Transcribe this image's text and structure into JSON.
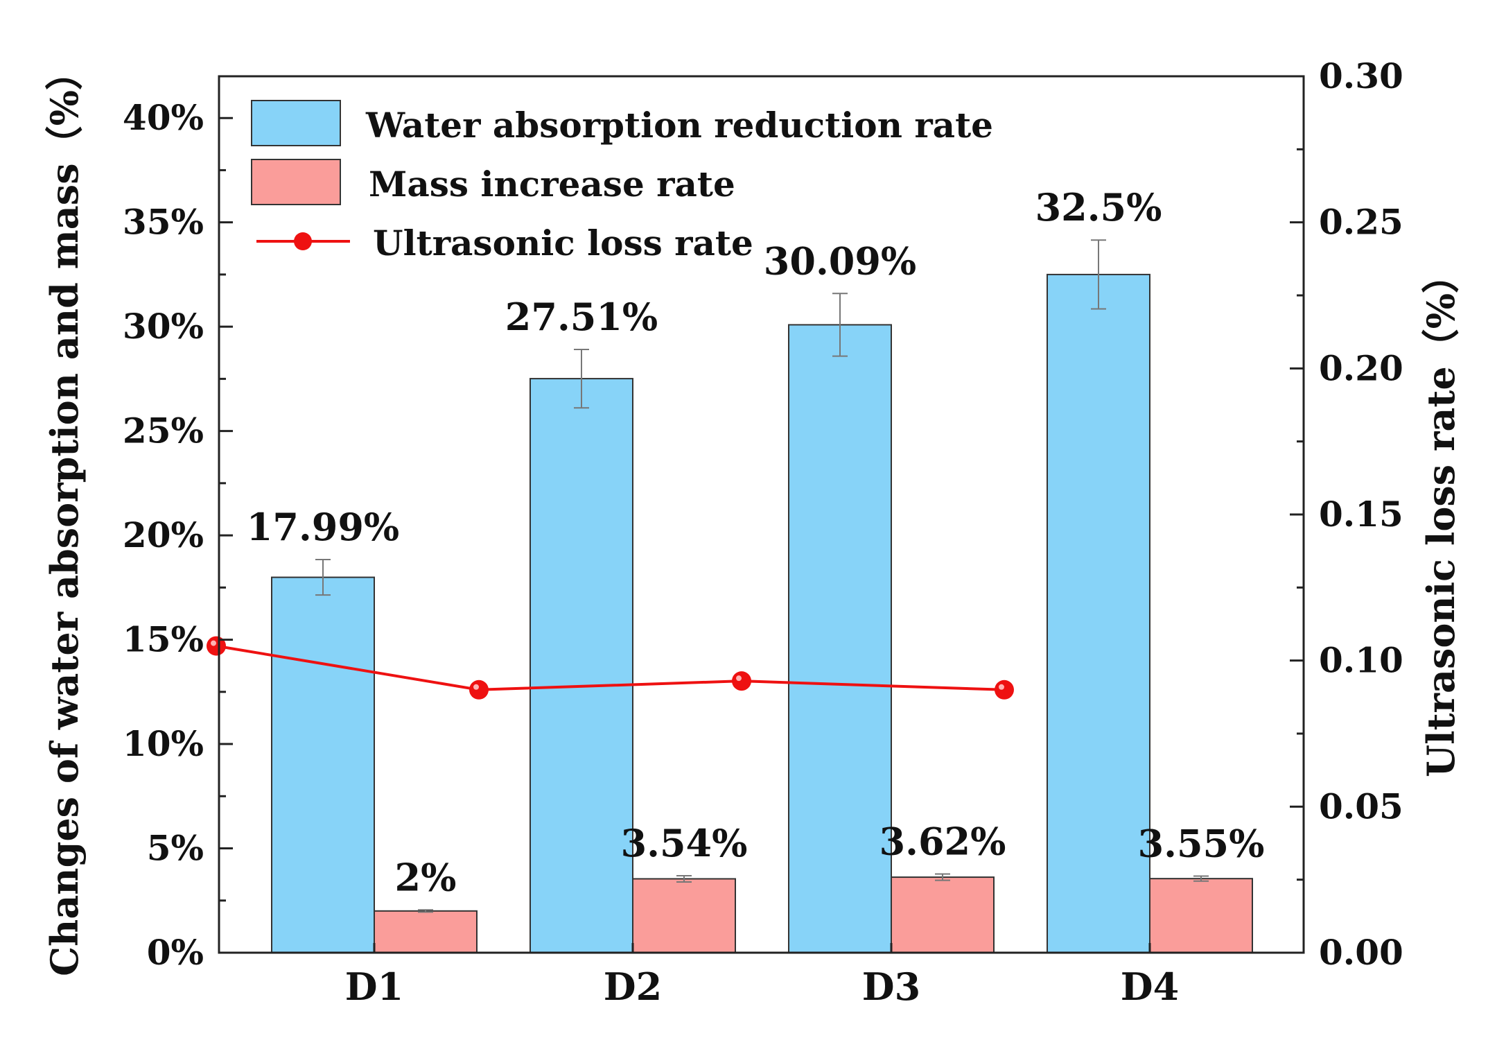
{
  "chart_data": {
    "type": "bar",
    "categories": [
      "D1",
      "D2",
      "D3",
      "D4"
    ],
    "series": [
      {
        "name": "Water absorption reduction rate",
        "axis": "left",
        "values": [
          17.99,
          27.51,
          30.09,
          32.5
        ],
        "errors": [
          0.85,
          1.4,
          1.5,
          1.65
        ],
        "labels": [
          "17.99%",
          "27.51%",
          "30.09%",
          "32.5%"
        ],
        "color": "#87d3f8"
      },
      {
        "name": "Mass increase rate",
        "axis": "left",
        "values": [
          2,
          3.54,
          3.62,
          3.55
        ],
        "errors": [
          0.05,
          0.15,
          0.15,
          0.12
        ],
        "labels": [
          "2%",
          "3.54%",
          "3.62%",
          "3.55%"
        ],
        "color": "#fa9d9a"
      },
      {
        "name": "Ultrasonic loss rate",
        "type": "line",
        "axis": "right",
        "values": [
          0.105,
          0.09,
          0.093,
          0.09
        ],
        "color": "#ee1111"
      }
    ],
    "y_left": {
      "label": "Changes of water absorption and mass（%）",
      "lim": [
        0,
        42
      ],
      "ticks": [
        0,
        5,
        10,
        15,
        20,
        25,
        30,
        35,
        40
      ],
      "tick_labels": [
        "0%",
        "5%",
        "10%",
        "15%",
        "20%",
        "25%",
        "30%",
        "35%",
        "40%"
      ]
    },
    "y_right": {
      "label": "Ultrasonic loss rate（%）",
      "lim": [
        0,
        0.3
      ],
      "ticks": [
        0,
        0.05,
        0.1,
        0.15,
        0.2,
        0.25,
        0.3
      ],
      "tick_labels": [
        "0.00",
        "0.05",
        "0.10",
        "0.15",
        "0.20",
        "0.25",
        "0.30"
      ]
    },
    "legend": "top-left",
    "grid": false
  }
}
